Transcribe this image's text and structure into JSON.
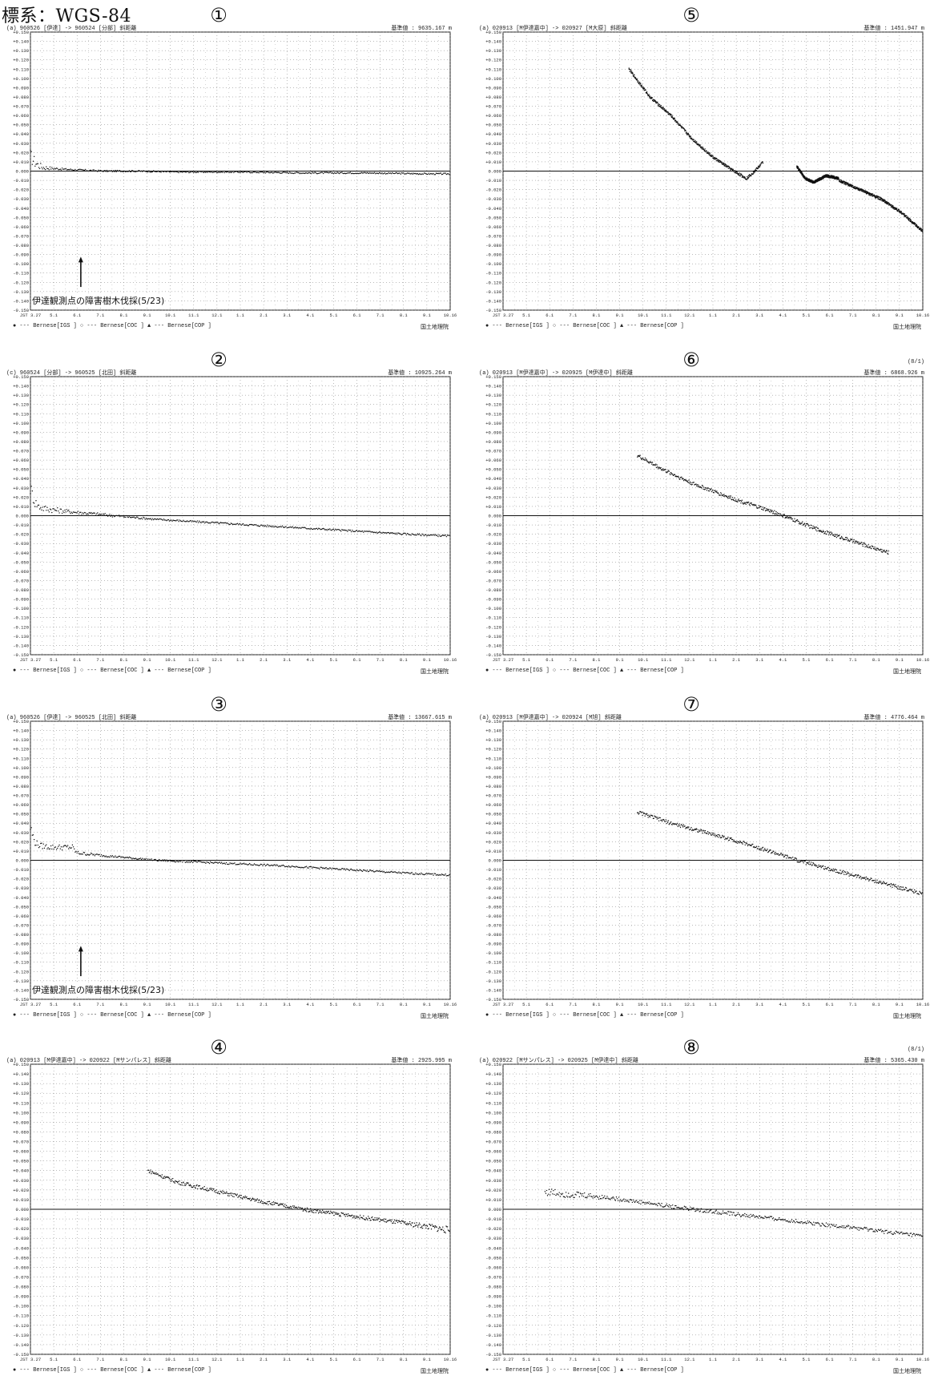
{
  "header": {
    "title": "標系：WGS-84"
  },
  "common": {
    "legend": "● --- Bernese[IGS  ]  ○ --- Bernese[COC  ]  ▲ --- Bernese[COP  ]",
    "credit": "国土地理院",
    "y_tick_labels": [
      "+0.150",
      "+0.140",
      "+0.130",
      "+0.120",
      "+0.110",
      "+0.100",
      "+0.090",
      "+0.080",
      "+0.070",
      "+0.060",
      "+0.050",
      "+0.040",
      "+0.030",
      "+0.020",
      "+0.010",
      "0.000",
      "-0.010",
      "-0.020",
      "-0.030",
      "-0.040",
      "-0.050",
      "-0.060",
      "-0.070",
      "-0.080",
      "-0.090",
      "-0.100",
      "-0.110",
      "-0.120",
      "-0.130",
      "-0.140",
      "-0.150"
    ],
    "x_tick_labels": [
      "JST 3.27",
      "5.1",
      "6.1",
      "7.1",
      "8.1",
      "9.1",
      "10.1",
      "11.1",
      "12.1",
      "1.1",
      "2.1",
      "3.1",
      "4.1",
      "5.1",
      "6.1",
      "7.1",
      "8.1",
      "9.1",
      "10.16"
    ]
  },
  "chart_data": [
    {
      "id": "1",
      "type": "scatter",
      "panel_label": "①",
      "strip_left": "(a)  960526 [伊達] -> 960524 [分部]   斜距離",
      "strip_right": "基準値 : 9635.167  m",
      "annotation": "伊達観測点の障害樹木伐採(5/23)",
      "ylim": [
        -0.15,
        0.15
      ],
      "x": [
        0,
        0.01,
        0.02,
        0.03,
        0.05,
        0.08,
        0.12,
        0.18,
        0.25,
        0.35,
        0.5,
        0.65,
        0.8,
        0.95,
        1.0
      ],
      "y": [
        0.016,
        0.01,
        0.006,
        0.004,
        0.003,
        0.002,
        0.001,
        0.0,
        0.0,
        -0.001,
        -0.001,
        -0.002,
        -0.002,
        -0.003,
        -0.003
      ],
      "scatter": [
        0.008,
        0.006,
        0.004,
        0.003,
        0.0015,
        0.001,
        0.001,
        0.0008,
        0.0008,
        0.0008,
        0.0008,
        0.0008,
        0.0008,
        0.0008,
        0.0008
      ]
    },
    {
      "id": "2",
      "type": "scatter",
      "panel_label": "②",
      "strip_left": "(c)  960524 [分部] -> 960525 [北田]   斜距離",
      "strip_right": "基準値 : 10925.264  m",
      "annotation": "",
      "ylim": [
        -0.15,
        0.15
      ],
      "x": [
        0,
        0.01,
        0.02,
        0.03,
        0.06,
        0.1,
        0.2,
        0.3,
        0.45,
        0.6,
        0.75,
        0.9,
        1.0
      ],
      "y": [
        0.03,
        0.015,
        0.01,
        0.008,
        0.006,
        0.004,
        0.0,
        -0.004,
        -0.008,
        -0.012,
        -0.016,
        -0.02,
        -0.022
      ],
      "scatter": [
        0.008,
        0.006,
        0.004,
        0.004,
        0.003,
        0.002,
        0.0015,
        0.001,
        0.001,
        0.001,
        0.001,
        0.001,
        0.001
      ]
    },
    {
      "id": "3",
      "type": "scatter",
      "panel_label": "③",
      "strip_left": "(a)  960526 [伊達] -> 960525 [北田]   斜距離",
      "strip_right": "基準値 : 13667.615  m",
      "annotation": "伊達観測点の障害樹木伐採(5/23)",
      "ylim": [
        -0.15,
        0.15
      ],
      "x": [
        0,
        0.01,
        0.02,
        0.05,
        0.1,
        0.11,
        0.15,
        0.2,
        0.3,
        0.45,
        0.6,
        0.75,
        0.9,
        1.0
      ],
      "y": [
        0.035,
        0.02,
        0.016,
        0.014,
        0.014,
        0.008,
        0.006,
        0.004,
        0.0,
        -0.003,
        -0.006,
        -0.01,
        -0.014,
        -0.016
      ],
      "scatter": [
        0.008,
        0.004,
        0.003,
        0.003,
        0.003,
        0.002,
        0.0015,
        0.001,
        0.001,
        0.001,
        0.001,
        0.001,
        0.001,
        0.001
      ]
    },
    {
      "id": "4",
      "type": "scatter",
      "panel_label": "④",
      "strip_left": "(a)  020913 [M伊達嘉中] -> 020922 [Mサンパレス]   斜距離",
      "strip_right": "基準値 : 2925.995  m",
      "annotation": "",
      "ylim": [
        -0.15,
        0.15
      ],
      "x": [
        0.28,
        0.35,
        0.45,
        0.55,
        0.65,
        0.75,
        0.85,
        0.95,
        1.0
      ],
      "y": [
        0.04,
        0.028,
        0.018,
        0.008,
        0.0,
        -0.006,
        -0.012,
        -0.018,
        -0.022
      ],
      "scatter": [
        0.002,
        0.002,
        0.002,
        0.002,
        0.002,
        0.002,
        0.002,
        0.003,
        0.004
      ]
    },
    {
      "id": "5",
      "type": "scatter",
      "panel_label": "⑤",
      "strip_left": "(a)  020913 [M伊達嘉中] -> 020927 [M大原]   斜距離",
      "strip_right": "基準値 : 1451.947  m",
      "annotation": "",
      "ylim": [
        -0.15,
        0.15
      ],
      "segments": [
        {
          "x": [
            0.3,
            0.35,
            0.4,
            0.45,
            0.5,
            0.55,
            0.58,
            0.6,
            0.62
          ],
          "y": [
            0.11,
            0.08,
            0.06,
            0.035,
            0.015,
            0.0,
            -0.008,
            0.0,
            0.01
          ]
        },
        {
          "x": [
            0.7,
            0.72,
            0.74,
            0.77,
            0.8
          ],
          "y": [
            0.005,
            -0.008,
            -0.012,
            -0.005,
            -0.008
          ]
        },
        {
          "x": [
            0.8,
            0.85,
            0.9,
            0.95,
            1.0
          ],
          "y": [
            -0.01,
            -0.02,
            -0.03,
            -0.045,
            -0.065
          ]
        }
      ]
    },
    {
      "id": "6",
      "type": "scatter",
      "panel_label": "⑥",
      "strip_left": "(a)  020913 [M伊達嘉中] -> 020925 [M伊達中]   斜距離",
      "strip_right": "基準値 : 6868.926  m",
      "corner_note": "(8/1)",
      "annotation": "",
      "ylim": [
        -0.15,
        0.15
      ],
      "x": [
        0.32,
        0.38,
        0.45,
        0.55,
        0.65,
        0.75,
        0.85,
        0.92
      ],
      "y": [
        0.065,
        0.05,
        0.035,
        0.018,
        0.003,
        -0.015,
        -0.03,
        -0.04
      ],
      "scatter": [
        0.002,
        0.002,
        0.002,
        0.002,
        0.002,
        0.002,
        0.002,
        0.002
      ]
    },
    {
      "id": "7",
      "type": "scatter",
      "panel_label": "⑦",
      "strip_left": "(a)  020913 [M伊達嘉中] -> 020924 [M旭]   斜距離",
      "strip_right": "基準値 : 4776.464  m",
      "annotation": "",
      "ylim": [
        -0.15,
        0.15
      ],
      "x": [
        0.32,
        0.4,
        0.5,
        0.6,
        0.7,
        0.8,
        0.9,
        1.0
      ],
      "y": [
        0.052,
        0.04,
        0.028,
        0.015,
        0.0,
        -0.012,
        -0.024,
        -0.036
      ],
      "scatter": [
        0.002,
        0.002,
        0.002,
        0.002,
        0.002,
        0.002,
        0.002,
        0.002
      ]
    },
    {
      "id": "8",
      "type": "scatter",
      "panel_label": "⑧",
      "strip_left": "(a)  020922 [Mサンパレス] -> 020925 [M伊達中]   斜距離",
      "strip_right": "基準値 : 5365.430  m",
      "corner_note": "(8/1)",
      "annotation": "",
      "ylim": [
        -0.15,
        0.15
      ],
      "x": [
        0.1,
        0.15,
        0.25,
        0.35,
        0.45,
        0.55,
        0.65,
        0.75,
        0.85,
        1.0
      ],
      "y": [
        0.018,
        0.016,
        0.012,
        0.006,
        0.0,
        -0.005,
        -0.01,
        -0.015,
        -0.02,
        -0.028
      ],
      "scatter": [
        0.004,
        0.004,
        0.002,
        0.002,
        0.002,
        0.002,
        0.002,
        0.002,
        0.002,
        0.002
      ]
    }
  ]
}
